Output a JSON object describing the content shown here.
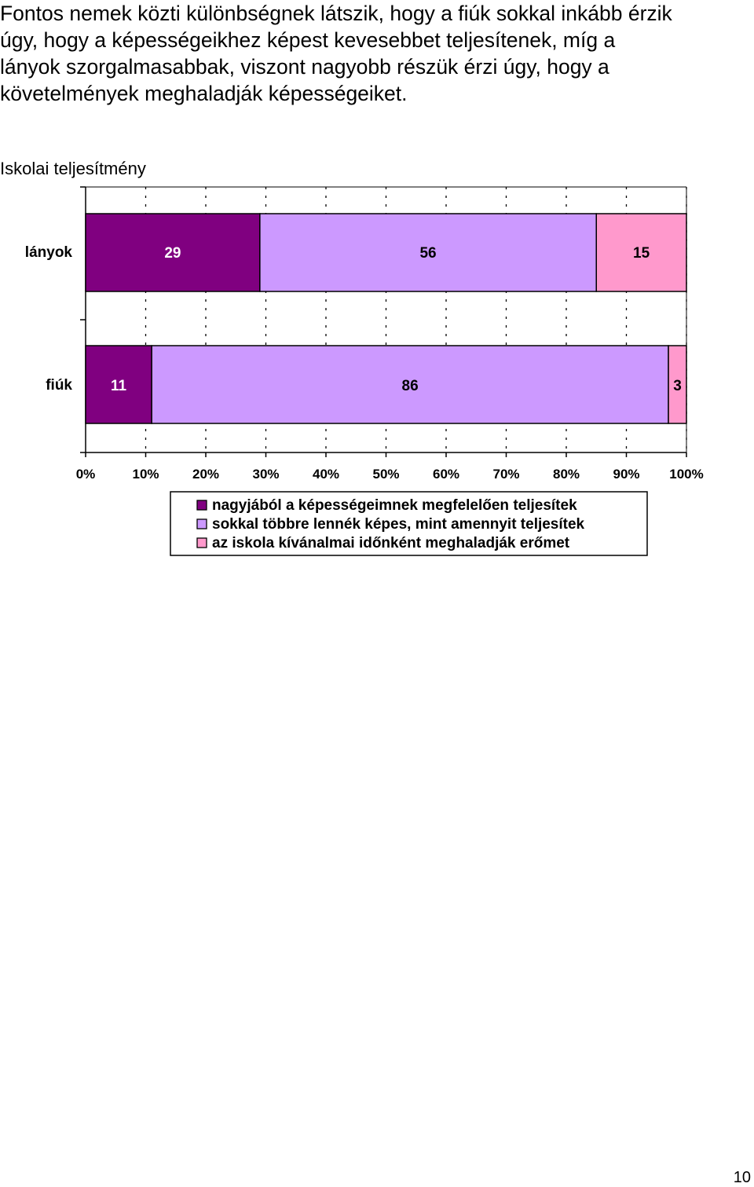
{
  "document": {
    "paragraph_lines": [
      "Fontos nemek közti különbségnek látszik, hogy a fiúk sokkal inkább érzik",
      "úgy, hogy a képességeikhez képest kevesebbet teljesítenek, míg a",
      "lányok szorgalmasabbak, viszont nagyobb részük érzi úgy, hogy a",
      "követelmények meghaladják képességeiket."
    ],
    "page_number": "10"
  },
  "chart_data": {
    "type": "bar",
    "orientation": "horizontal",
    "stacked": "percent",
    "title": "Iskolai teljesítmény",
    "categories": [
      "lányok",
      "fiúk"
    ],
    "series": [
      {
        "name": "nagyjából a képességeimnek megfelelően teljesítek",
        "values": [
          29,
          11
        ],
        "color": "#800080"
      },
      {
        "name": "sokkal többre lennék képes, mint amennyit teljesítek",
        "values": [
          56,
          86
        ],
        "color": "#cc99ff"
      },
      {
        "name": "az iskola kívánalmai időnként meghaladják erőmet",
        "values": [
          15,
          3
        ],
        "color": "#ff99cc"
      }
    ],
    "xlim": [
      0,
      100
    ],
    "x_ticks": [
      "0%",
      "10%",
      "20%",
      "30%",
      "40%",
      "50%",
      "60%",
      "70%",
      "80%",
      "90%",
      "100%"
    ],
    "grid": "vertical dashed",
    "legend_position": "bottom"
  }
}
